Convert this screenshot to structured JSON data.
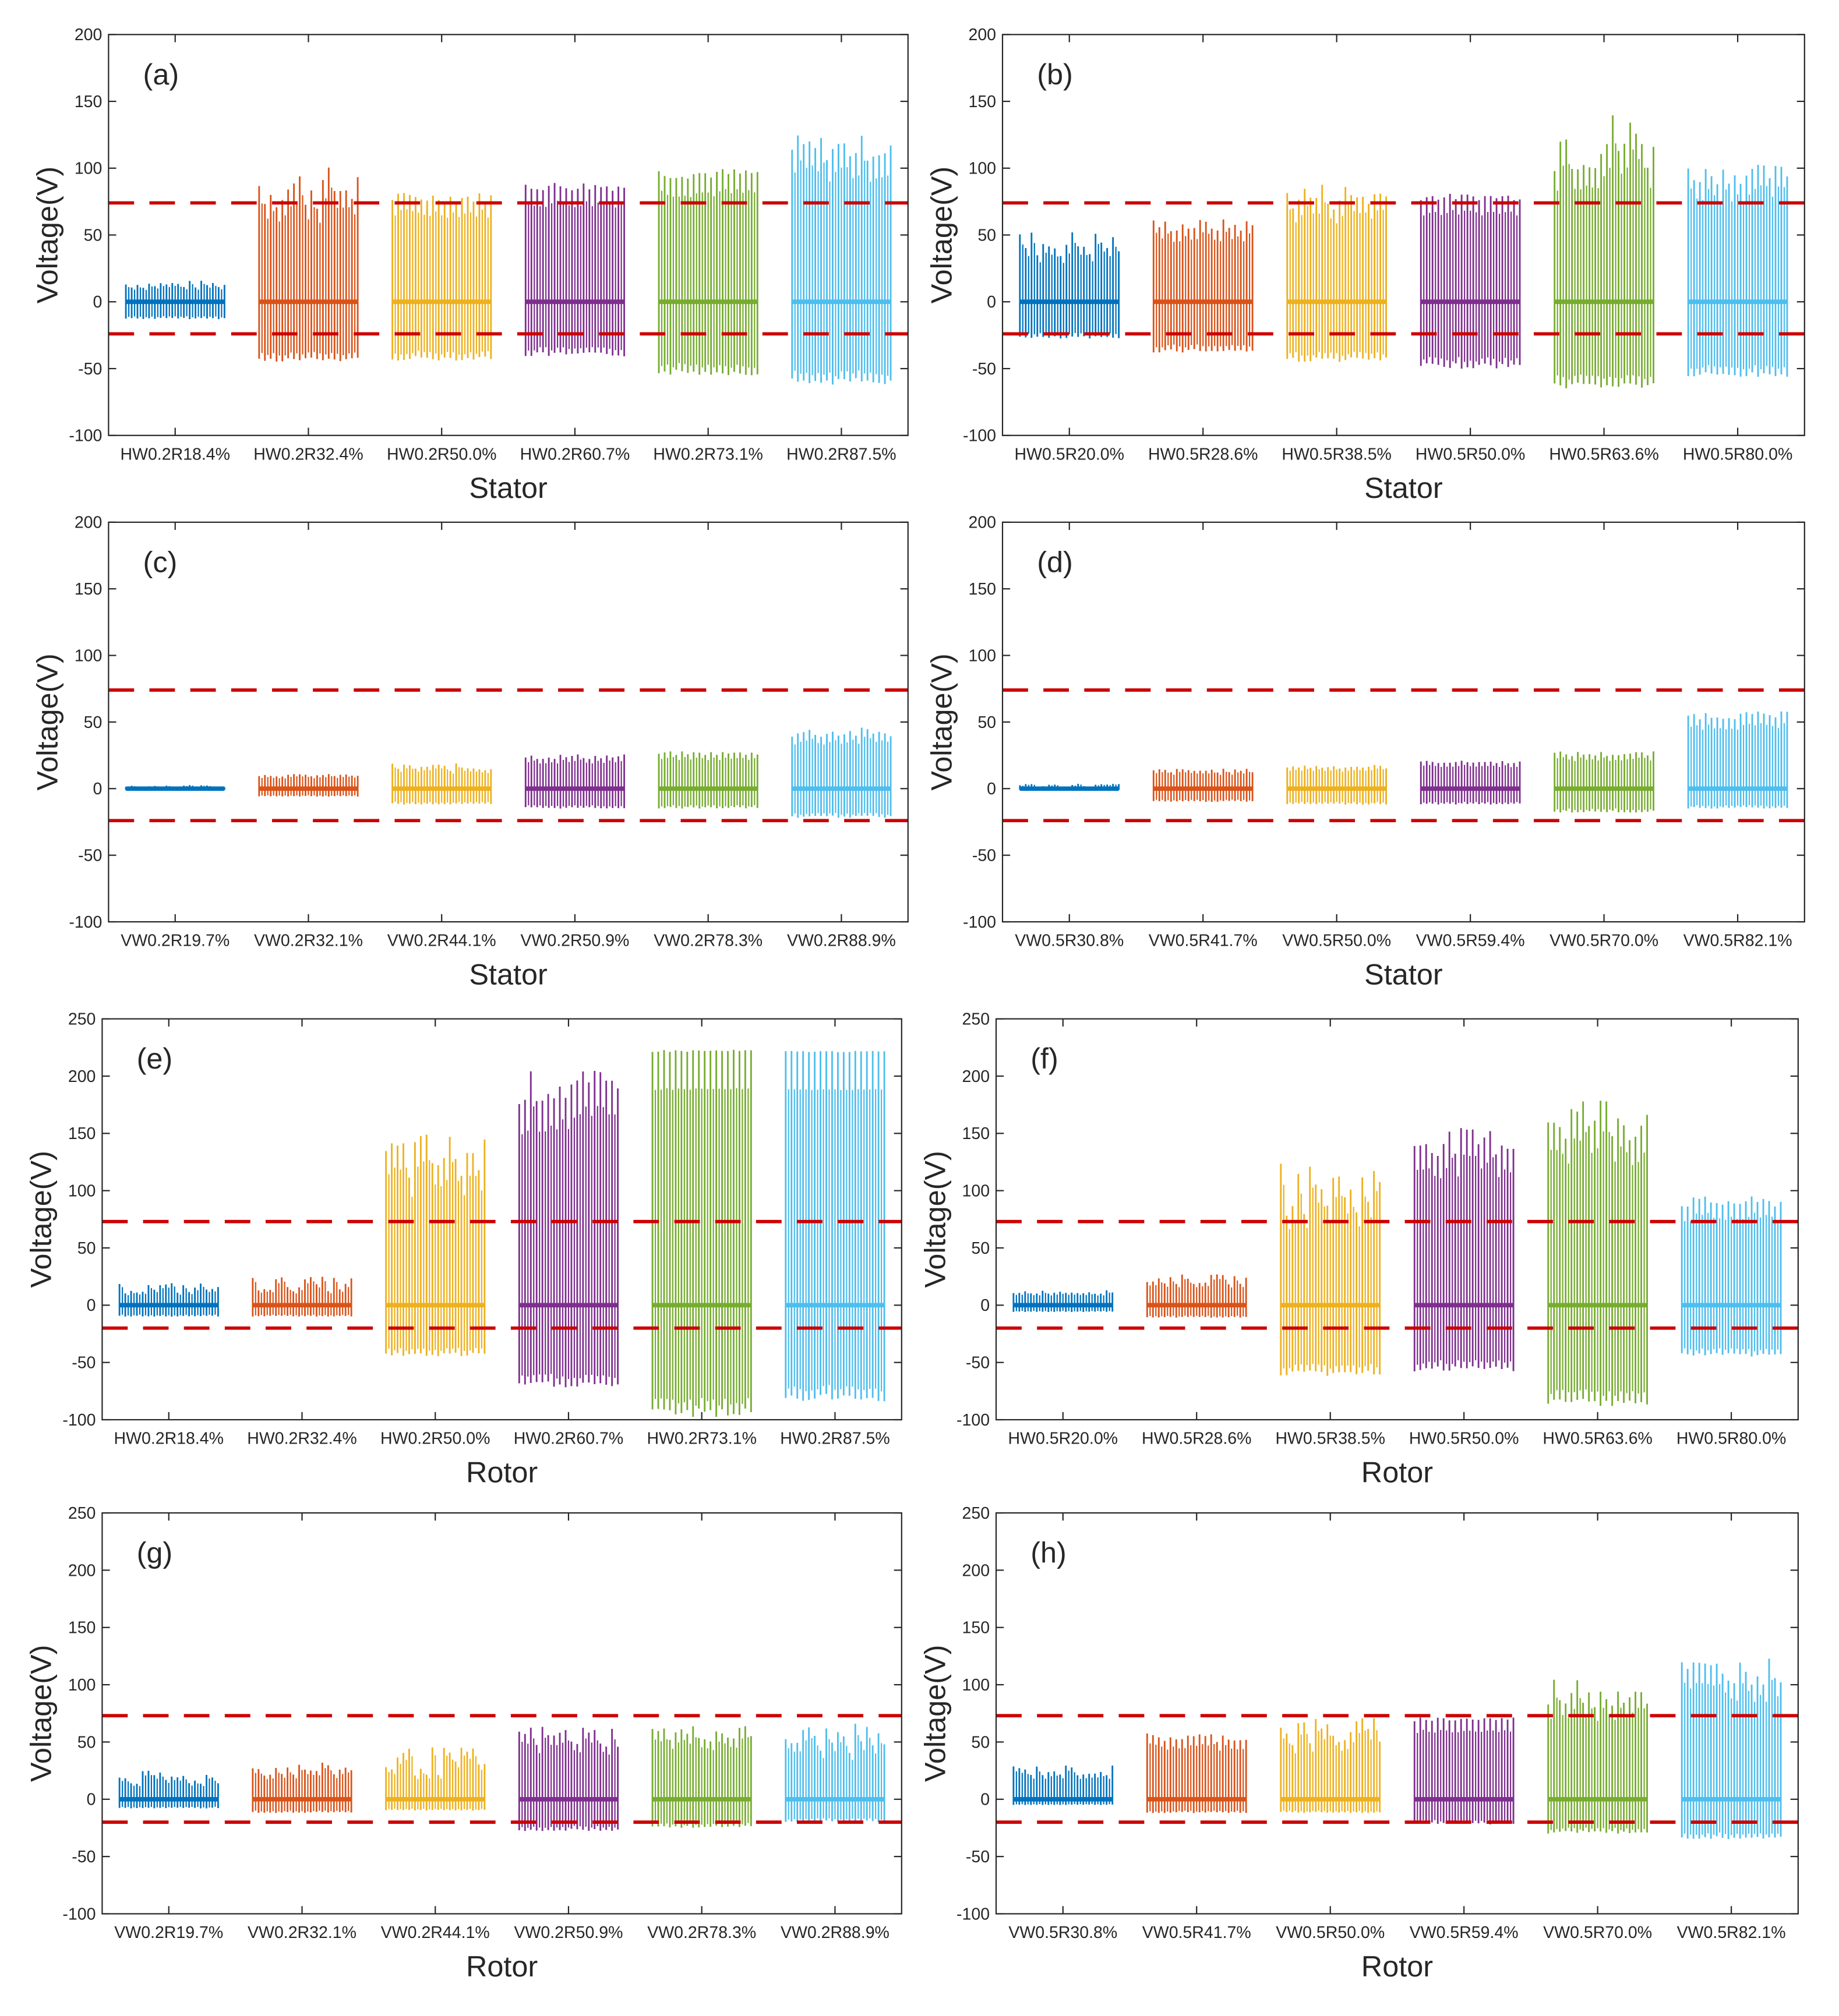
{
  "chart_data": [
    {
      "id": "a",
      "type": "bar",
      "title": "(a)",
      "xlabel": "Stator",
      "ylabel": "Voltage(V)",
      "ylim": [
        -100,
        200
      ],
      "yticks": [
        -100,
        -50,
        0,
        50,
        100,
        150,
        200
      ],
      "thresholds": [
        74,
        -24
      ],
      "categories": [
        "HW0.2R18.4%",
        "HW0.2R32.4%",
        "HW0.2R50.0%",
        "HW0.2R60.7%",
        "HW0.2R73.1%",
        "HW0.2R87.5%"
      ],
      "series": [
        {
          "peak_range": [
            10,
            16
          ],
          "min": -13
        },
        {
          "peak_range": [
            68,
            102
          ],
          "min": -45
        },
        {
          "peak_range": [
            74,
            82
          ],
          "min": -44
        },
        {
          "peak_range": [
            83,
            90
          ],
          "min": -41
        },
        {
          "peak_range": [
            92,
            100
          ],
          "min": -55
        },
        {
          "peak_range": [
            105,
            125
          ],
          "min": -62
        }
      ]
    },
    {
      "id": "b",
      "type": "bar",
      "title": "(b)",
      "xlabel": "Stator",
      "ylabel": "Voltage(V)",
      "ylim": [
        -100,
        200
      ],
      "yticks": [
        -100,
        -50,
        0,
        50,
        100,
        150,
        200
      ],
      "thresholds": [
        74,
        -24
      ],
      "categories": [
        "HW0.5R20.0%",
        "HW0.5R28.6%",
        "HW0.5R38.5%",
        "HW0.5R50.0%",
        "HW0.5R63.6%",
        "HW0.5R80.0%"
      ],
      "series": [
        {
          "peak_range": [
            33,
            54
          ],
          "min": -28
        },
        {
          "peak_range": [
            52,
            62
          ],
          "min": -38
        },
        {
          "peak_range": [
            68,
            90
          ],
          "min": -45
        },
        {
          "peak_range": [
            76,
            81
          ],
          "min": -50
        },
        {
          "peak_range": [
            95,
            145
          ],
          "min": -65
        },
        {
          "peak_range": [
            88,
            103
          ],
          "min": -57
        }
      ]
    },
    {
      "id": "c",
      "type": "bar",
      "title": "(c)",
      "xlabel": "Stator",
      "ylabel": "Voltage(V)",
      "ylim": [
        -100,
        200
      ],
      "yticks": [
        -100,
        -50,
        0,
        50,
        100,
        150,
        200
      ],
      "thresholds": [
        74,
        -24
      ],
      "categories": [
        "VW0.2R19.7%",
        "VW0.2R32.1%",
        "VW0.2R44.1%",
        "VW0.2R50.9%",
        "VW0.2R78.3%",
        "VW0.2R88.9%"
      ],
      "series": [
        {
          "peak_range": [
            1,
            3
          ],
          "min": -1
        },
        {
          "peak_range": [
            9,
            11
          ],
          "min": -6
        },
        {
          "peak_range": [
            13,
            19
          ],
          "min": -12
        },
        {
          "peak_range": [
            22,
            26
          ],
          "min": -15
        },
        {
          "peak_range": [
            25,
            28
          ],
          "min": -15
        },
        {
          "peak_range": [
            38,
            46
          ],
          "min": -22
        }
      ]
    },
    {
      "id": "d",
      "type": "bar",
      "title": "(d)",
      "xlabel": "Stator",
      "ylabel": "Voltage(V)",
      "ylim": [
        -100,
        200
      ],
      "yticks": [
        -100,
        -50,
        0,
        50,
        100,
        150,
        200
      ],
      "thresholds": [
        74,
        -24
      ],
      "categories": [
        "VW0.5R30.8%",
        "VW0.5R41.7%",
        "VW0.5R50.0%",
        "VW0.5R59.4%",
        "VW0.5R70.0%",
        "VW0.5R82.1%"
      ],
      "series": [
        {
          "peak_range": [
            1,
            4
          ],
          "min": -1
        },
        {
          "peak_range": [
            12,
            15
          ],
          "min": -10
        },
        {
          "peak_range": [
            15,
            18
          ],
          "min": -12
        },
        {
          "peak_range": [
            19,
            21
          ],
          "min": -12
        },
        {
          "peak_range": [
            24,
            28
          ],
          "min": -18
        },
        {
          "peak_range": [
            52,
            58
          ],
          "min": -15
        }
      ]
    },
    {
      "id": "e",
      "type": "bar",
      "title": "(e)",
      "xlabel": "Rotor",
      "ylabel": "Voltage(V)",
      "ylim": [
        -100,
        250
      ],
      "yticks": [
        -100,
        -50,
        0,
        50,
        100,
        150,
        200,
        250
      ],
      "thresholds": [
        73,
        -20
      ],
      "categories": [
        "HW0.2R18.4%",
        "HW0.2R32.4%",
        "HW0.2R50.0%",
        "HW0.2R60.7%",
        "HW0.2R73.1%",
        "HW0.2R87.5%"
      ],
      "series": [
        {
          "peak_range": [
            10,
            20
          ],
          "min": -10
        },
        {
          "peak_range": [
            12,
            25
          ],
          "min": -10
        },
        {
          "peak_range": [
            105,
            152
          ],
          "min": -45
        },
        {
          "peak_range": [
            175,
            205
          ],
          "min": -72
        },
        {
          "peak_range": [
            221,
            223
          ],
          "min": -98
        },
        {
          "peak_range": [
            221,
            222
          ],
          "min": -84
        }
      ]
    },
    {
      "id": "f",
      "type": "bar",
      "title": "(f)",
      "xlabel": "Rotor",
      "ylabel": "Voltage(V)",
      "ylim": [
        -100,
        250
      ],
      "yticks": [
        -100,
        -50,
        0,
        50,
        100,
        150,
        200,
        250
      ],
      "thresholds": [
        73,
        -20
      ],
      "categories": [
        "HW0.5R20.0%",
        "HW0.5R28.6%",
        "HW0.5R38.5%",
        "HW0.5R50.0%",
        "HW0.5R63.6%",
        "HW0.5R80.0%"
      ],
      "series": [
        {
          "peak_range": [
            10,
            13
          ],
          "min": -6
        },
        {
          "peak_range": [
            18,
            27
          ],
          "min": -11
        },
        {
          "peak_range": [
            78,
            125
          ],
          "min": -62
        },
        {
          "peak_range": [
            130,
            155
          ],
          "min": -58
        },
        {
          "peak_range": [
            140,
            187
          ],
          "min": -88
        },
        {
          "peak_range": [
            85,
            95
          ],
          "min": -45
        }
      ]
    },
    {
      "id": "g",
      "type": "bar",
      "title": "(g)",
      "xlabel": "Rotor",
      "ylabel": "Voltage(V)",
      "ylim": [
        -100,
        250
      ],
      "yticks": [
        -100,
        -50,
        0,
        50,
        100,
        150,
        200,
        250
      ],
      "thresholds": [
        73,
        -20
      ],
      "categories": [
        "VW0.2R19.7%",
        "VW0.2R32.1%",
        "VW0.2R44.1%",
        "VW0.2R50.9%",
        "VW0.2R78.3%",
        "VW0.2R88.9%"
      ],
      "series": [
        {
          "peak_range": [
            12,
            25
          ],
          "min": -8
        },
        {
          "peak_range": [
            20,
            32
          ],
          "min": -12
        },
        {
          "peak_range": [
            20,
            46
          ],
          "min": -10
        },
        {
          "peak_range": [
            45,
            65
          ],
          "min": -28
        },
        {
          "peak_range": [
            50,
            65
          ],
          "min": -25
        },
        {
          "peak_range": [
            40,
            66
          ],
          "min": -20
        }
      ]
    },
    {
      "id": "h",
      "type": "bar",
      "title": "(h)",
      "xlabel": "Rotor",
      "ylabel": "Voltage(V)",
      "ylim": [
        -100,
        250
      ],
      "yticks": [
        -100,
        -50,
        0,
        50,
        100,
        150,
        200,
        250
      ],
      "thresholds": [
        73,
        -20
      ],
      "categories": [
        "VW0.5R30.8%",
        "VW0.5R41.7%",
        "VW0.5R50.0%",
        "VW0.5R59.4%",
        "VW0.5R70.0%",
        "VW0.5R82.1%"
      ],
      "series": [
        {
          "peak_range": [
            20,
            30
          ],
          "min": -5
        },
        {
          "peak_range": [
            50,
            58
          ],
          "min": -12
        },
        {
          "peak_range": [
            45,
            72
          ],
          "min": -12
        },
        {
          "peak_range": [
            68,
            72
          ],
          "min": -22
        },
        {
          "peak_range": [
            80,
            108
          ],
          "min": -30
        },
        {
          "peak_range": [
            100,
            124
          ],
          "min": -35
        }
      ]
    }
  ],
  "colors": {
    "series": [
      "#0072BD",
      "#D95319",
      "#EDB120",
      "#7E2F8E",
      "#77AC30",
      "#4DBEEE"
    ],
    "threshold": "#CC0000",
    "axis": "#262626"
  }
}
